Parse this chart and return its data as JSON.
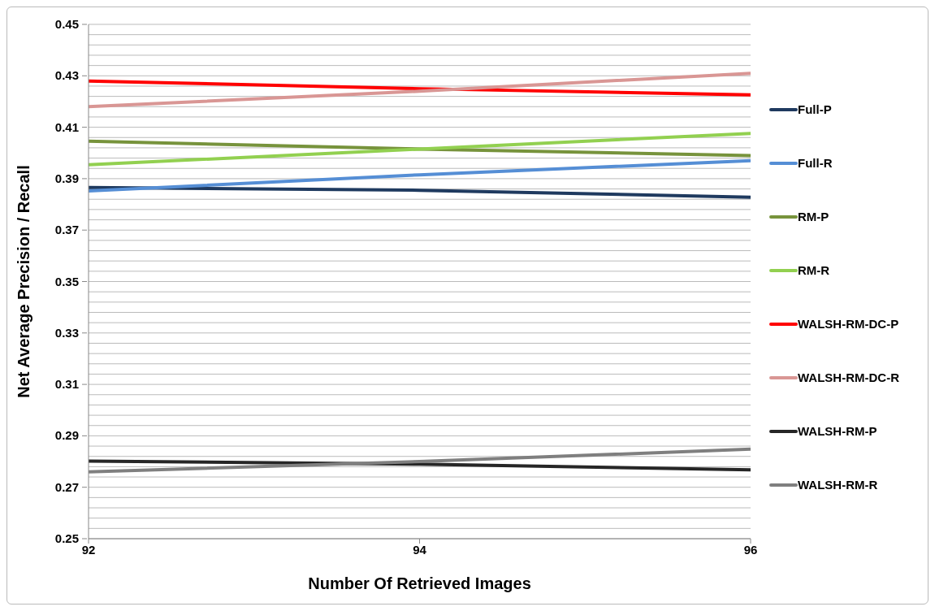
{
  "chart_data": {
    "type": "line",
    "xlabel": "Number Of Retrieved Images",
    "ylabel": "Net Average Precision / Recall",
    "x": [
      92,
      94,
      96
    ],
    "xlim": [
      92,
      96
    ],
    "xticks": [
      92,
      94,
      96
    ],
    "ylim": [
      0.25,
      0.45
    ],
    "yticks": [
      0.25,
      {
        "value": 0.254,
        "label": null
      },
      {
        "value": 0.258,
        "label": null
      },
      {
        "value": 0.262,
        "label": null
      },
      {
        "value": 0.266,
        "label": null
      },
      0.27,
      {
        "value": 0.274,
        "label": null
      },
      {
        "value": 0.278,
        "label": null
      },
      {
        "value": 0.282,
        "label": null
      },
      {
        "value": 0.286,
        "label": null
      },
      0.29,
      {
        "value": 0.294,
        "label": null
      },
      {
        "value": 0.298,
        "label": null
      },
      {
        "value": 0.302,
        "label": null
      },
      {
        "value": 0.306,
        "label": null
      },
      0.31,
      {
        "value": 0.314,
        "label": null
      },
      {
        "value": 0.318,
        "label": null
      },
      {
        "value": 0.322,
        "label": null
      },
      {
        "value": 0.326,
        "label": null
      },
      0.33,
      {
        "value": 0.334,
        "label": null
      },
      {
        "value": 0.338,
        "label": null
      },
      {
        "value": 0.342,
        "label": null
      },
      {
        "value": 0.346,
        "label": null
      },
      0.35,
      {
        "value": 0.354,
        "label": null
      },
      {
        "value": 0.358,
        "label": null
      },
      {
        "value": 0.362,
        "label": null
      },
      {
        "value": 0.366,
        "label": null
      },
      0.37,
      {
        "value": 0.374,
        "label": null
      },
      {
        "value": 0.378,
        "label": null
      },
      {
        "value": 0.382,
        "label": null
      },
      {
        "value": 0.386,
        "label": null
      },
      0.39,
      {
        "value": 0.394,
        "label": null
      },
      {
        "value": 0.398,
        "label": null
      },
      {
        "value": 0.402,
        "label": null
      },
      {
        "value": 0.406,
        "label": null
      },
      0.41,
      {
        "value": 0.414,
        "label": null
      },
      {
        "value": 0.418,
        "label": null
      },
      {
        "value": 0.422,
        "label": null
      },
      {
        "value": 0.426,
        "label": null
      },
      0.43,
      {
        "value": 0.434,
        "label": null
      },
      {
        "value": 0.438,
        "label": null
      },
      {
        "value": 0.442,
        "label": null
      },
      {
        "value": 0.446,
        "label": null
      },
      0.45
    ],
    "grid": "y",
    "legend": "right",
    "marker": "none",
    "line_style": "solid",
    "series": [
      {
        "name": "Full-P",
        "color": "#1f3a5f",
        "values": [
          0.3866,
          0.3855,
          0.3828
        ]
      },
      {
        "name": "Full-R",
        "color": "#558ed5",
        "values": [
          0.3852,
          0.3915,
          0.397
        ]
      },
      {
        "name": "RM-P",
        "color": "#77933c",
        "values": [
          0.4046,
          0.4015,
          0.399
        ]
      },
      {
        "name": "RM-R",
        "color": "#92d050",
        "values": [
          0.3954,
          0.4015,
          0.4076
        ]
      },
      {
        "name": "WALSH-RM-DC-P",
        "color": "#ff0000",
        "values": [
          0.428,
          0.425,
          0.4226
        ]
      },
      {
        "name": "WALSH-RM-DC-R",
        "color": "#d99694",
        "values": [
          0.418,
          0.424,
          0.431
        ]
      },
      {
        "name": "WALSH-RM-P",
        "color": "#262626",
        "values": [
          0.2802,
          0.279,
          0.2768
        ]
      },
      {
        "name": "WALSH-RM-R",
        "color": "#7f7f7f",
        "values": [
          0.276,
          0.28,
          0.2848
        ]
      }
    ]
  }
}
